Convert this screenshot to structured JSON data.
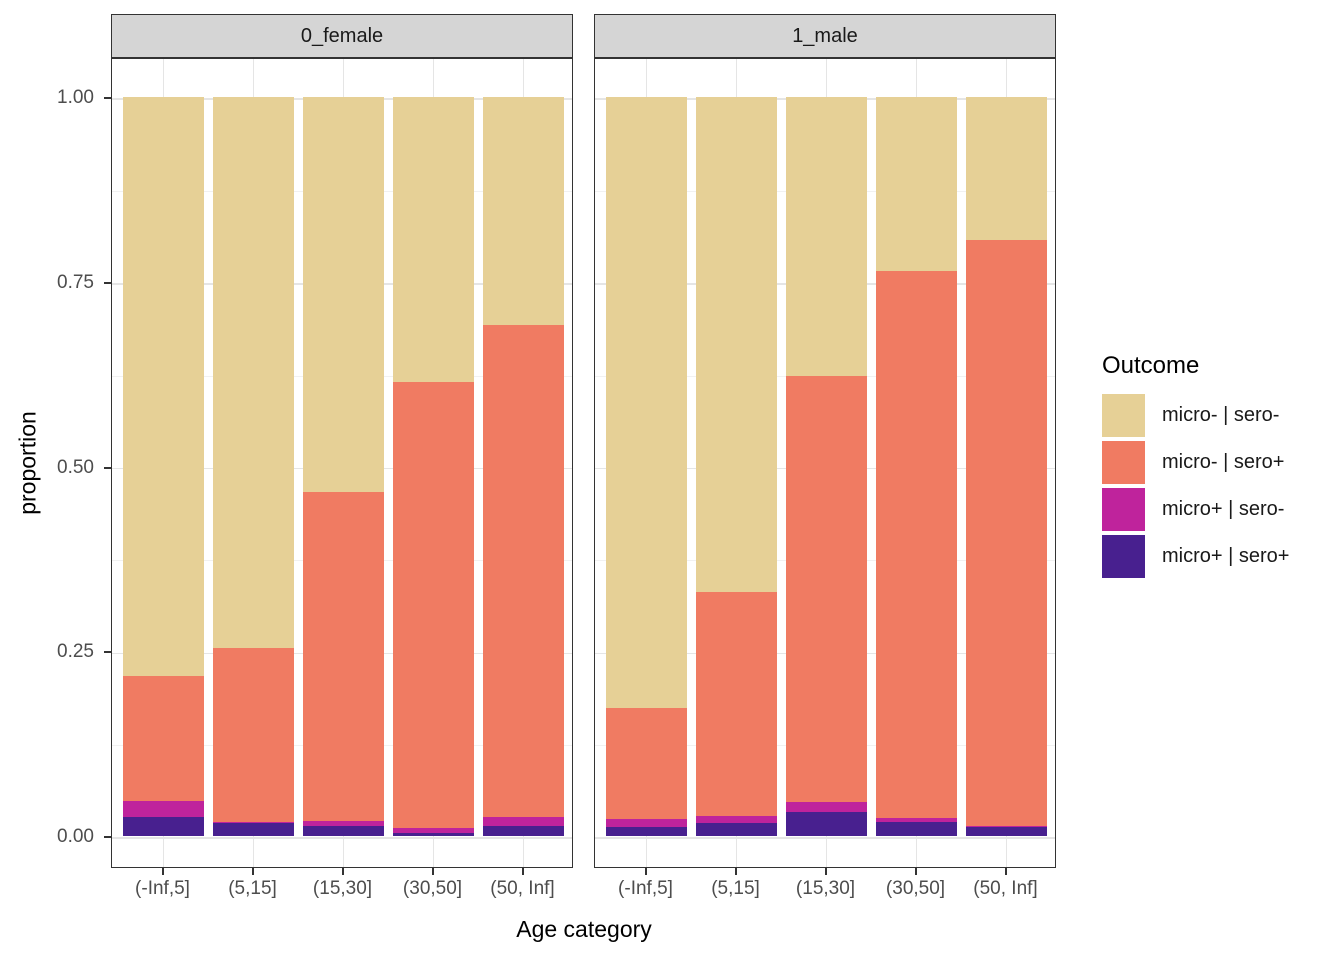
{
  "chart_data": {
    "type": "bar",
    "stacked": true,
    "facets": [
      "0_female",
      "1_male"
    ],
    "categories": [
      "(-Inf,5]",
      "(5,15]",
      "(15,30]",
      "(30,50]",
      "(50, Inf]"
    ],
    "x_title": "Age category",
    "y_title": "proportion",
    "legend_title": "Outcome",
    "legend_position": "right",
    "ylim": [
      0,
      1
    ],
    "y_ticks": [
      0,
      0.25,
      0.5,
      0.75,
      1
    ],
    "y_tick_labels": [
      "0.00",
      "0.25",
      "0.50",
      "0.75",
      "1.00"
    ],
    "y_minor_ticks": [
      0.125,
      0.375,
      0.625,
      0.875
    ],
    "grid": {
      "major": true,
      "minor": true
    },
    "stack_order_bottom_to_top": [
      "micro+ | sero+",
      "micro+ | sero-",
      "micro- | sero+",
      "micro- | sero-"
    ],
    "series": [
      {
        "name": "micro- | sero-",
        "color": "#e6d096",
        "values": [
          [
            0.784,
            0.745,
            0.535,
            0.385,
            0.308
          ],
          [
            0.827,
            0.67,
            0.377,
            0.235,
            0.194
          ]
        ]
      },
      {
        "name": "micro- | sero+",
        "color": "#f07b62",
        "values": [
          [
            0.168,
            0.236,
            0.445,
            0.604,
            0.666
          ],
          [
            0.15,
            0.303,
            0.577,
            0.74,
            0.792
          ]
        ]
      },
      {
        "name": "micro+ | sero-",
        "color": "#bf239c",
        "values": [
          [
            0.022,
            0.002,
            0.006,
            0.007,
            0.013
          ],
          [
            0.011,
            0.01,
            0.013,
            0.006,
            0.002
          ]
        ]
      },
      {
        "name": "micro+ | sero+",
        "color": "#48208f",
        "values": [
          [
            0.026,
            0.017,
            0.014,
            0.004,
            0.013
          ],
          [
            0.012,
            0.017,
            0.033,
            0.019,
            0.012
          ]
        ]
      }
    ]
  }
}
